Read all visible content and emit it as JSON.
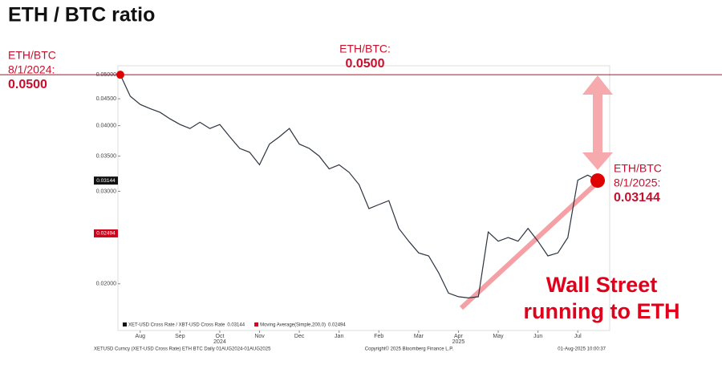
{
  "chart_data": {
    "type": "line",
    "title": "ETH / BTC ratio",
    "categories": [
      null,
      null,
      "Aug",
      null,
      null,
      null,
      "Sep",
      null,
      null,
      null,
      "Oct",
      null,
      null,
      null,
      "Nov",
      null,
      null,
      null,
      "Dec",
      null,
      null,
      null,
      "Jan",
      null,
      null,
      null,
      "Feb",
      null,
      null,
      null,
      "Mar",
      null,
      null,
      null,
      "Apr",
      null,
      null,
      null,
      "May",
      null,
      null,
      null,
      "Jun",
      null,
      null,
      null,
      "Jul",
      null,
      null
    ],
    "category_sublabels": [
      null,
      null,
      null,
      null,
      null,
      null,
      null,
      null,
      null,
      null,
      "2024",
      null,
      null,
      null,
      null,
      null,
      null,
      null,
      null,
      null,
      null,
      null,
      null,
      null,
      null,
      null,
      null,
      null,
      null,
      null,
      null,
      null,
      null,
      null,
      "2025",
      null,
      null,
      null,
      null,
      null,
      null,
      null,
      null,
      null,
      null,
      null,
      null,
      null,
      null
    ],
    "series": [
      {
        "name": "XET-USD Cross Rate / XBT-USD Cross Rate",
        "color": "#2b3440",
        "values": [
          0.05,
          0.0455,
          0.0439,
          0.0431,
          0.0424,
          0.0412,
          0.0402,
          0.0395,
          0.0406,
          0.0395,
          0.0402,
          0.0381,
          0.0362,
          0.0356,
          0.0337,
          0.0369,
          0.0381,
          0.0395,
          0.0369,
          0.0362,
          0.035,
          0.0331,
          0.0337,
          0.0326,
          0.0309,
          0.0278,
          0.0283,
          0.0288,
          0.0255,
          0.0241,
          0.0229,
          0.0226,
          0.021,
          0.0192,
          0.0189,
          0.0188,
          0.0189,
          0.0251,
          0.0241,
          0.0245,
          0.0241,
          0.0255,
          0.0241,
          0.0226,
          0.0229,
          0.0245,
          0.0315,
          0.0322,
          0.03144
        ]
      }
    ],
    "log_scale": true,
    "ylim": [
      0.017,
      0.052
    ],
    "yticks": [
      {
        "value": 0.05,
        "label": "0.05000"
      },
      {
        "value": 0.045,
        "label": "0.04500"
      },
      {
        "value": 0.04,
        "label": "0.04000"
      },
      {
        "value": 0.035,
        "label": "0.03500"
      },
      {
        "value": 0.03,
        "label": "0.03000"
      },
      {
        "value": 0.02,
        "label": "0.02000"
      }
    ],
    "legend": [
      {
        "name": "XET-USD Cross Rate / XBT-USD Cross Rate",
        "value": 0.03144,
        "value_label": "0.03144",
        "color": "#111111"
      },
      {
        "name": "Moving Average(Simple,200,0)",
        "value": 0.02494,
        "value_label": "0.02494",
        "color": "#d0021b"
      }
    ],
    "annotations": [
      {
        "lines": [
          "ETH/BTC",
          "8/1/2024:"
        ],
        "value": 0.05,
        "value_label": "0.0500"
      },
      {
        "lines": [
          "ETH/BTC:"
        ],
        "value": 0.05,
        "value_label": "0.0500"
      },
      {
        "lines": [
          "ETH/BTC",
          "8/1/2025:"
        ],
        "value": 0.03144,
        "value_label": "0.03144"
      }
    ],
    "callout": [
      "Wall Street",
      "running to ETH"
    ],
    "footer": [
      "XETUSD Curncy (XET-USD Cross Rate) ETH BTC  Daily 01AUG2024-01AUG2025",
      "Copyright© 2025 Bloomberg Finance L.P.",
      "01-Aug-2025 10:00:37"
    ]
  }
}
